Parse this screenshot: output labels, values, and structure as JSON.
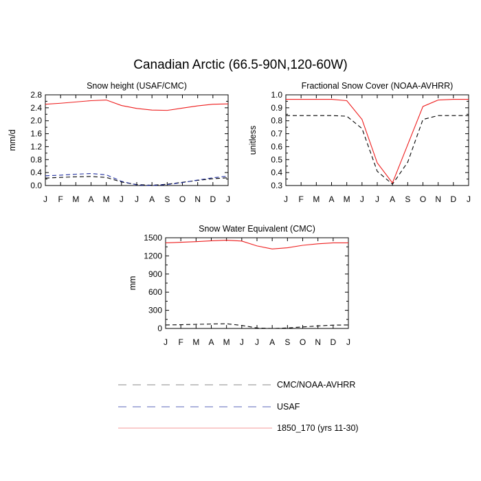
{
  "figure": {
    "title": "Canadian Arctic (66.5-90N,120-60W)"
  },
  "colors": {
    "model": "#ee1c1c",
    "cmc_noaa": "#000000",
    "usaf": "#1f2d9e",
    "legend_model": "#f59a9a",
    "legend_cmc_noaa": "#8a8a8a",
    "legend_usaf": "#5a64b8"
  },
  "legend": {
    "items": [
      {
        "key": "cmc_noaa",
        "label": "CMC/NOAA-AVHRR",
        "dash": "dashed"
      },
      {
        "key": "usaf",
        "label": "USAF",
        "dash": "dashed"
      },
      {
        "key": "model",
        "label": "1850_170 (yrs 11-30)",
        "dash": "solid"
      }
    ]
  },
  "chart_data": [
    {
      "type": "line",
      "title": "Snow height (USAF/CMC)",
      "xlabel": "",
      "ylabel": "mm/d",
      "categories": [
        "J",
        "F",
        "M",
        "A",
        "M",
        "J",
        "J",
        "A",
        "S",
        "O",
        "N",
        "D",
        "J"
      ],
      "ylim": [
        0.0,
        2.8
      ],
      "yticks": [
        "0.0",
        "0.4",
        "0.8",
        "1.2",
        "1.6",
        "2.0",
        "2.4",
        "2.8"
      ],
      "series": [
        {
          "key": "model",
          "values": [
            2.51,
            2.54,
            2.58,
            2.62,
            2.64,
            2.47,
            2.38,
            2.33,
            2.32,
            2.39,
            2.46,
            2.51,
            2.52
          ]
        },
        {
          "key": "cmc_noaa",
          "values": [
            0.23,
            0.25,
            0.27,
            0.28,
            0.25,
            0.11,
            0.03,
            0.01,
            0.04,
            0.1,
            0.16,
            0.21,
            0.24
          ]
        },
        {
          "key": "usaf",
          "values": [
            0.3,
            0.32,
            0.35,
            0.37,
            0.33,
            0.13,
            0.02,
            0.0,
            0.03,
            0.09,
            0.17,
            0.24,
            0.29
          ]
        }
      ]
    },
    {
      "type": "line",
      "title": "Fractional Snow Cover (NOAA-AVHRR)",
      "xlabel": "",
      "ylabel": "unitless",
      "categories": [
        "J",
        "F",
        "M",
        "A",
        "M",
        "J",
        "J",
        "A",
        "S",
        "O",
        "N",
        "D",
        "J"
      ],
      "ylim": [
        0.3,
        1.0
      ],
      "yticks": [
        "0.3",
        "0.4",
        "0.5",
        "0.6",
        "0.7",
        "0.8",
        "0.9",
        "1.0"
      ],
      "series": [
        {
          "key": "model",
          "values": [
            0.965,
            0.965,
            0.965,
            0.965,
            0.955,
            0.81,
            0.475,
            0.32,
            0.615,
            0.91,
            0.96,
            0.965,
            0.965
          ]
        },
        {
          "key": "cmc_noaa",
          "values": [
            0.84,
            0.84,
            0.84,
            0.84,
            0.835,
            0.74,
            0.41,
            0.31,
            0.48,
            0.81,
            0.84,
            0.84,
            0.84
          ]
        }
      ]
    },
    {
      "type": "line",
      "title": "Snow Water Equivalent (CMC)",
      "xlabel": "",
      "ylabel": "mm",
      "categories": [
        "J",
        "F",
        "M",
        "A",
        "M",
        "J",
        "J",
        "A",
        "S",
        "O",
        "N",
        "D",
        "J"
      ],
      "ylim": [
        0,
        1500
      ],
      "yticks": [
        "0",
        "300",
        "600",
        "900",
        "1200",
        "1500"
      ],
      "series": [
        {
          "key": "model",
          "values": [
            1415,
            1425,
            1435,
            1450,
            1460,
            1445,
            1365,
            1315,
            1335,
            1375,
            1400,
            1415,
            1415
          ]
        },
        {
          "key": "cmc_noaa",
          "values": [
            58,
            62,
            68,
            74,
            78,
            50,
            8,
            0,
            8,
            25,
            42,
            55,
            58
          ]
        }
      ]
    }
  ]
}
